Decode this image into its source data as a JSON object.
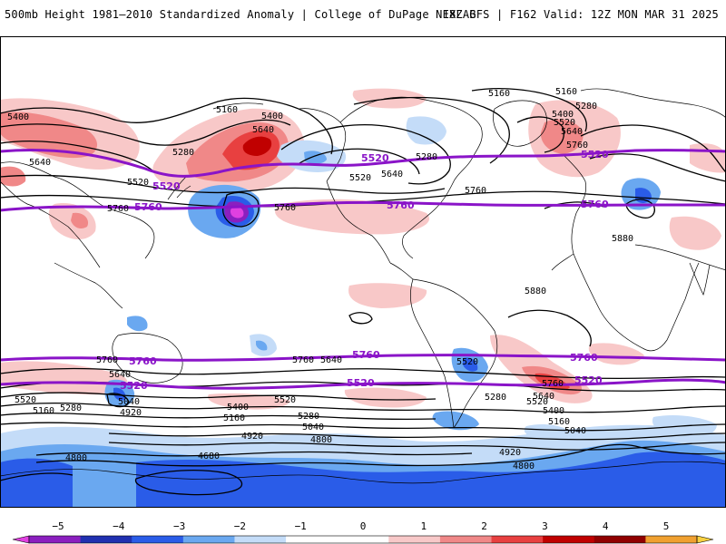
{
  "header": {
    "title_left": "500mb Height 1981–2010 Standardized Anomaly | College of DuPage NEXLAB",
    "title_right": "18Z GFS | F162 Valid: 12Z MON MAR 31 2025"
  },
  "colors": {
    "purple_contour": "#8a14c8",
    "black_contour": "#000000",
    "coast": "#000000"
  },
  "map": {
    "purple_contours": [
      "5520",
      "5760"
    ],
    "black_contour_labels": [
      "5160",
      "5400",
      "5640",
      "5280",
      "5520",
      "5760",
      "5880",
      "5040",
      "4920",
      "4800",
      "4680"
    ],
    "labels": {
      "nh_5400_w": "5400",
      "nh_5640_w": "5640",
      "nh_5520_w": "5520",
      "nh_5760_w": "5760",
      "nh_5160_pac": "5160",
      "nh_5400_pac": "5400",
      "nh_5640_pac": "5640",
      "nh_5280_pac": "5280",
      "nh_5760_pac": "5760",
      "nh_5520_na": "5520",
      "nh_5640_na": "5640",
      "nh_5280_na": "5280",
      "nh_5760_atl": "5760",
      "nh_5160_can": "5160",
      "nh_5160_eu": "5160",
      "nh_5280_eu": "5280",
      "nh_5400_eu": "5400",
      "nh_5520_eu": "5520",
      "nh_5640_eu": "5640",
      "nh_5760_eu": "5760",
      "nh_5880_af": "5880",
      "nh_5880_sa": "5880",
      "p_5520_w": "5520",
      "p_5760_w": "5760",
      "p_5520_na": "5520",
      "p_5760_na": "5760",
      "p_5520_eu": "5520",
      "p_5760_eu": "5760",
      "sh_5760_w": "5760",
      "sh_5640_w": "5640",
      "sh_5520_w": "5520",
      "sh_5160_w": "5160",
      "sh_5280_w": "5280",
      "sh_5040_w": "5040",
      "sh_4920_w": "4920",
      "sh_4800_w": "4800",
      "sh_4680": "4680",
      "sh_5760_c": "5760",
      "sh_5640_c": "5640",
      "sh_5520_c": "5520",
      "sh_5400_c": "5400",
      "sh_5160_c": "5160",
      "sh_5280_c": "5280",
      "sh_5040_c": "5040",
      "sh_4920_c": "4920",
      "sh_4800_c": "4800",
      "sh_5520_sa": "5520",
      "sh_5280_sa": "5280",
      "sh_5760_e": "5760",
      "sh_5640_e": "5640",
      "sh_5520_e": "5520",
      "sh_5400_e": "5400",
      "sh_5160_e": "5160",
      "sh_5040_e": "5040",
      "sh_4920_e": "4920",
      "sh_4800_e": "4800",
      "p_sh_5760_w": "5760",
      "p_sh_5520_w": "5520",
      "p_sh_5760_c": "5760",
      "p_sh_5520_c": "5520",
      "p_sh_5760_e": "5760",
      "p_sh_5520_e": "5520"
    }
  },
  "colorbar": {
    "ticks": [
      "−5",
      "−4",
      "−3",
      "−2",
      "−1",
      "0",
      "1",
      "2",
      "3",
      "4",
      "5"
    ],
    "colors": [
      "#e040e0",
      "#8b1fbf",
      "#2030b0",
      "#2a5ce8",
      "#6aa8f0",
      "#c4dcf8",
      "#ffffff",
      "#ffffff",
      "#f8c8c8",
      "#f08888",
      "#e84040",
      "#c00000",
      "#900000",
      "#f0a030",
      "#f8d040"
    ]
  }
}
